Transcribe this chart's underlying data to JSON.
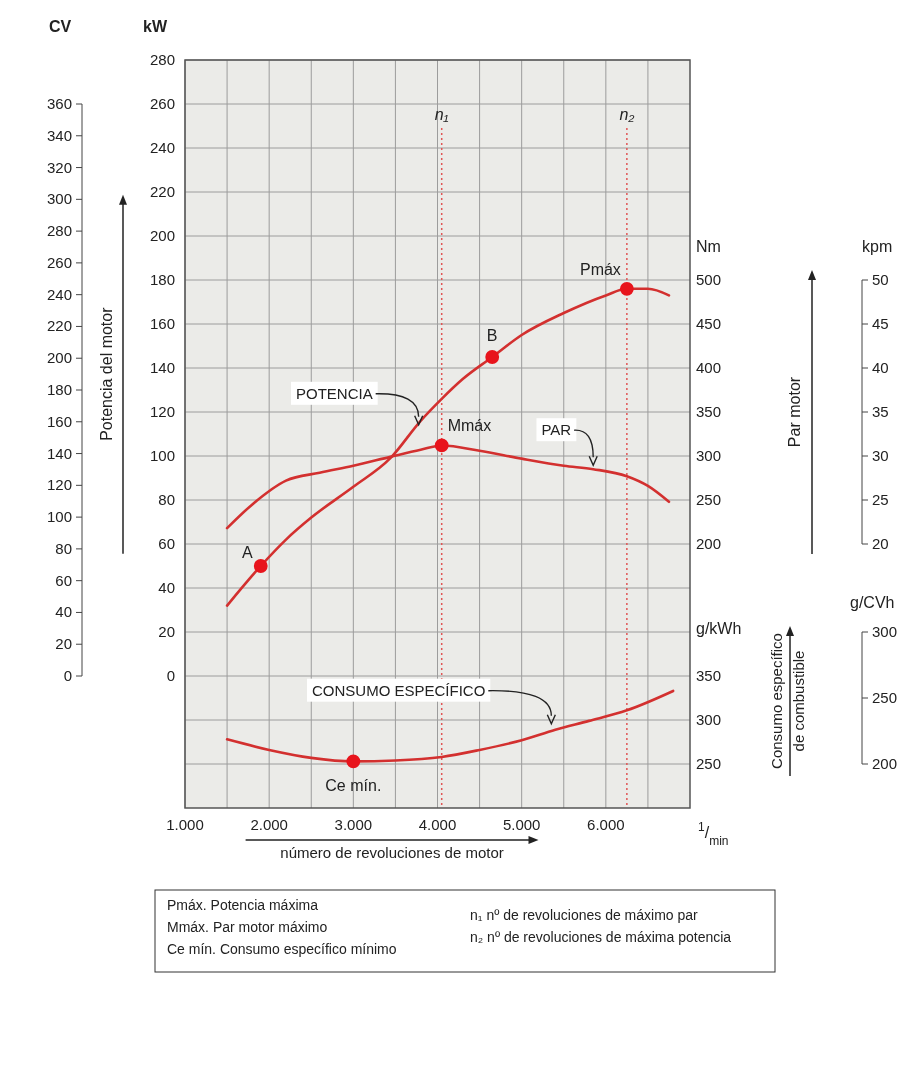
{
  "chart_data": {
    "type": "line",
    "xlabel": "número de revoluciones de motor",
    "ylabel": "Potencia del motor",
    "y2label": "Par motor",
    "y3label": "Consumo específico\nde combustible",
    "xlim": [
      1000,
      7000
    ],
    "xticks": [
      {
        "value": 1000,
        "label": "1.000"
      },
      {
        "value": 1500,
        "label": null
      },
      {
        "value": 2000,
        "label": "2.000"
      },
      {
        "value": 2500,
        "label": null
      },
      {
        "value": 3000,
        "label": "3.000"
      },
      {
        "value": 3500,
        "label": null
      },
      {
        "value": 4000,
        "label": "4.000"
      },
      {
        "value": 4500,
        "label": null
      },
      {
        "value": 5000,
        "label": "5.000"
      },
      {
        "value": 5500,
        "label": null
      },
      {
        "value": 6000,
        "label": "6.000"
      },
      {
        "value": 6500,
        "label": null
      }
    ],
    "ylim": [
      -60,
      280
    ],
    "yticks": [
      {
        "value": -40,
        "label": null
      },
      {
        "value": -20,
        "label": null
      },
      0,
      20,
      40,
      60,
      80,
      100,
      120,
      140,
      160,
      180,
      200,
      220,
      240,
      260,
      280
    ],
    "y2lim": [
      -100,
      750
    ],
    "y2ticks": [
      200,
      250,
      300,
      350,
      400,
      450,
      500
    ],
    "y3lim": [
      200,
      1050
    ],
    "y3ticks": [
      250,
      300,
      350
    ],
    "grid": true,
    "series": [
      {
        "name": "POTENCIA",
        "color": "#d3302f",
        "x": [
          1500,
          1900,
          2200,
          2500,
          3000,
          3440,
          3800,
          4050,
          4300,
          4650,
          5000,
          5500,
          6000,
          6250,
          6500,
          6750
        ],
        "values": [
          32,
          50,
          62,
          72,
          86,
          99,
          116,
          126,
          135,
          145,
          155,
          165,
          173,
          176,
          176,
          173
        ]
      },
      {
        "name": "PAR",
        "color": "#d3302f",
        "axis": "y2",
        "x": [
          1500,
          1800,
          2200,
          2600,
          3000,
          3440,
          3800,
          4050,
          4500,
          5000,
          5500,
          5850,
          6250,
          6500,
          6750
        ],
        "values": [
          218,
          245,
          272,
          281,
          289,
          299,
          307,
          312,
          306,
          297,
          289,
          285,
          277,
          266,
          248
        ]
      },
      {
        "name": "CONSUMO ESPECÍFICO",
        "color": "#d3302f",
        "axis": "y3",
        "x": [
          1500,
          2000,
          2500,
          3000,
          3500,
          4050,
          4500,
          5000,
          5400,
          5800,
          6250,
          6800
        ],
        "values": [
          278,
          266,
          257,
          253,
          254,
          258,
          266,
          277,
          289,
          299,
          311,
          333
        ]
      },
      {
        "type": "scatter",
        "marker": "circle",
        "color": "#e8141c",
        "x": [
          1900,
          4650,
          6250
        ],
        "values": [
          50,
          145,
          176
        ]
      },
      {
        "type": "scatter",
        "marker": "circle",
        "color": "#e8141c",
        "axis": "y2",
        "x": [
          4050
        ],
        "values": [
          312
        ]
      },
      {
        "type": "scatter",
        "marker": "circle",
        "color": "#e8141c",
        "axis": "y3",
        "x": [
          3000
        ],
        "values": [
          253
        ]
      }
    ],
    "ref_lines": [
      {
        "axis": "x",
        "value": 4050,
        "label": "n₁",
        "color": "#e05555",
        "line_style": "dotted"
      },
      {
        "axis": "x",
        "value": 6250,
        "label": "n₂",
        "color": "#e05555",
        "line_style": "dotted"
      }
    ],
    "annotations": [
      "CV",
      "kW",
      "Nm",
      "kpm",
      "g/kWh",
      "g/CVh",
      "$^{1}$/$_{min}$",
      "0",
      "20",
      "40",
      "60",
      "80",
      "100",
      "120",
      "140",
      "160",
      "180",
      "200",
      "220",
      "240",
      "260",
      "280",
      "300",
      "320",
      "340",
      "360",
      "20",
      "25",
      "30",
      "35",
      "40",
      "45",
      "50",
      "200",
      "250",
      "300",
      "Mmáx",
      "Ce mín.",
      {
        "text": "A",
        "x": 1900,
        "y": 50
      },
      {
        "text": "B",
        "x": 4650,
        "y": 145
      },
      {
        "text": "Pmáx",
        "x": 6250,
        "y": 176
      },
      "Pmáx.  Potencia máxima",
      "Mmáx.  Par motor máximo",
      "Ce mín.  Consumo específico mínimo",
      "n₁  nº de revoluciones de máximo par",
      "n₂  nº de revoluciones de máxima potencia"
    ]
  }
}
